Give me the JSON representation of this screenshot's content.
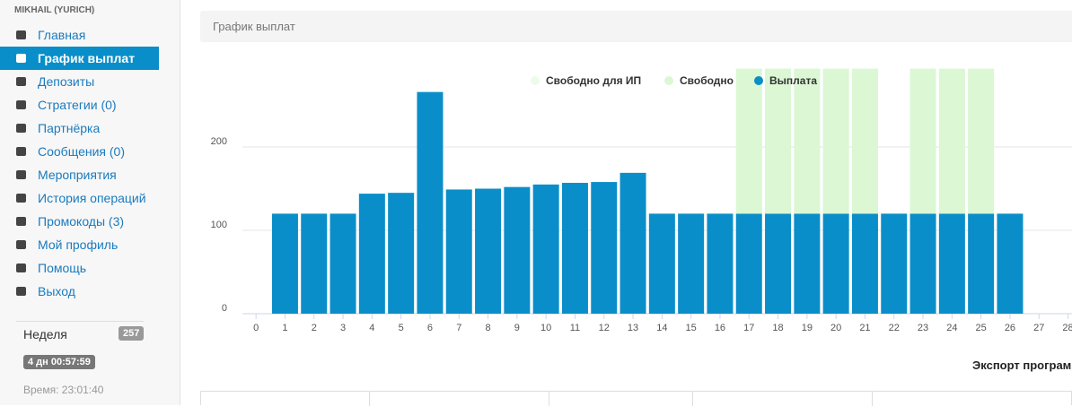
{
  "sidebar": {
    "user": "MIKHAIL (YURICH)",
    "menu": [
      "Главная",
      "График выплат",
      "Депозиты",
      "Стратегии (0)",
      "Партнёрка",
      "Сообщения (0)",
      "Мероприятия",
      "История операций",
      "Промокоды (3)",
      "Мой профиль",
      "Помощь",
      "Выход"
    ],
    "active": 1,
    "week": {
      "label": "Неделя",
      "count": "257"
    },
    "timer": "4 дн 00:57:59",
    "time": "Время: 23:01:40"
  },
  "header": {
    "title": "График выплат"
  },
  "export_label": "Экспорт програм",
  "chart_data": {
    "type": "bar",
    "stacked": true,
    "x": [
      1,
      2,
      3,
      4,
      5,
      6,
      7,
      8,
      9,
      10,
      11,
      12,
      13,
      14,
      15,
      16,
      17,
      18,
      19,
      20,
      21,
      22,
      23,
      24,
      25,
      26
    ],
    "series": [
      {
        "name": "Выплата",
        "color": "#0a8ec9",
        "values": [
          120,
          120,
          120,
          144,
          145,
          266,
          149,
          150,
          152,
          155,
          157,
          158,
          169,
          120,
          120,
          120,
          120,
          120,
          120,
          120,
          120,
          120,
          120,
          120,
          120,
          120
        ]
      },
      {
        "name": "Свободно",
        "color": "#dbf7d4",
        "values": [
          null,
          null,
          null,
          null,
          null,
          null,
          null,
          null,
          null,
          null,
          null,
          null,
          null,
          null,
          null,
          null,
          174,
          174,
          174,
          174,
          174,
          null,
          174,
          174,
          174,
          null
        ]
      },
      {
        "name": "Свободно для ИП",
        "color": "#eefbec",
        "values": [
          null,
          null,
          null,
          null,
          null,
          null,
          null,
          null,
          null,
          null,
          null,
          null,
          null,
          null,
          null,
          null,
          null,
          null,
          null,
          null,
          null,
          null,
          null,
          null,
          null,
          null
        ]
      }
    ],
    "legend_order": [
      "Свободно для ИП",
      "Свободно",
      "Выплата"
    ],
    "xlim": [
      -0.5,
      28.5
    ],
    "xticks": [
      0,
      1,
      2,
      3,
      4,
      5,
      6,
      7,
      8,
      9,
      10,
      11,
      12,
      13,
      14,
      15,
      16,
      17,
      18,
      19,
      20,
      21,
      22,
      23,
      24,
      25,
      26,
      27,
      28
    ],
    "ylim": [
      0,
      294
    ],
    "yticks": [
      0,
      100,
      200
    ],
    "grid": true,
    "legend": "top"
  }
}
